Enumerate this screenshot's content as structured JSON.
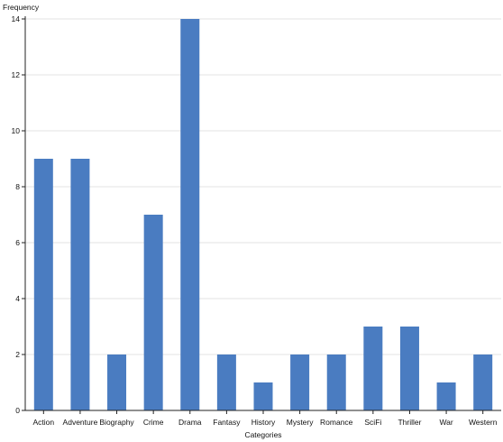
{
  "chart_data": {
    "type": "bar",
    "title": "",
    "xlabel": "Categories",
    "ylabel": "Frequency",
    "categories": [
      "Action",
      "Adventure",
      "Biography",
      "Crime",
      "Drama",
      "Fantasy",
      "History",
      "Mystery",
      "Romance",
      "SciFi",
      "Thriller",
      "War",
      "Western"
    ],
    "values": [
      9,
      9,
      2,
      7,
      14,
      2,
      1,
      2,
      2,
      3,
      3,
      1,
      2
    ],
    "ylim": [
      0,
      14
    ],
    "yticks": [
      0,
      2,
      4,
      6,
      8,
      10,
      12,
      14
    ],
    "grid": true,
    "legend": "none",
    "colors": {
      "bar": "#4a7cc1",
      "grid": "#e3e3e3",
      "axis": "#222222"
    }
  }
}
